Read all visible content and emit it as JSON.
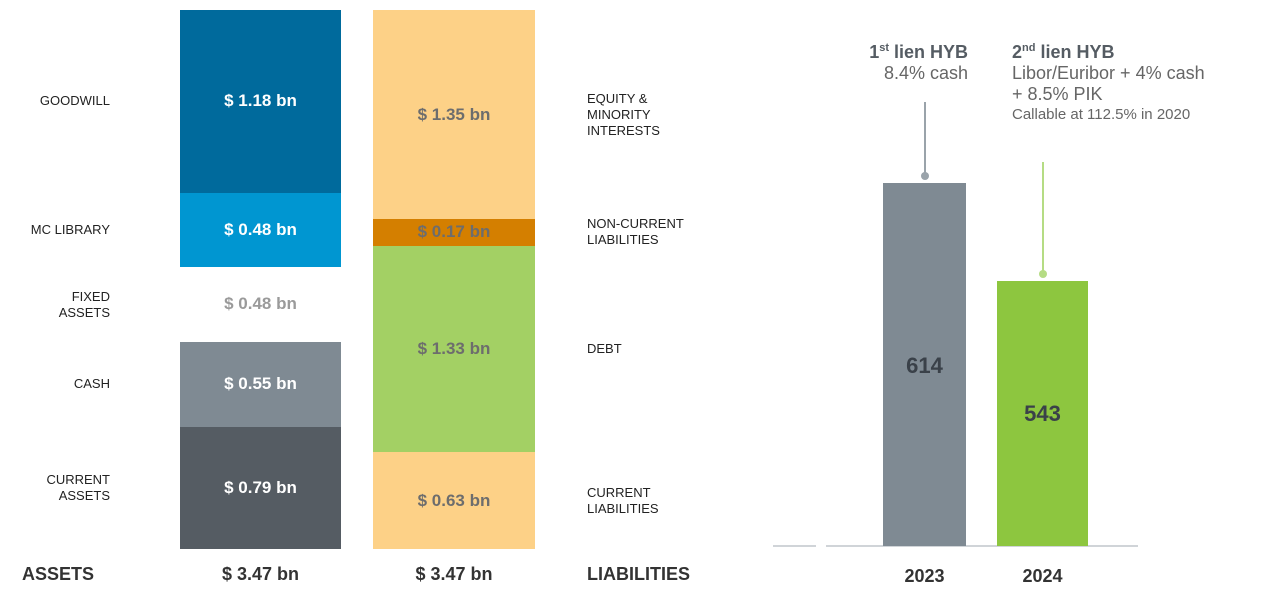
{
  "chart_data": [
    {
      "type": "balance-sheet",
      "columns": [
        {
          "name": "ASSETS",
          "total": 3.47,
          "total_label": "$ 3.47 bn",
          "segments": [
            "GOODWILL",
            "MC LIBRARY",
            "FIXED\nASSETS",
            "CASH",
            "CURRENT\nASSETS"
          ],
          "values": [
            1.18,
            0.48,
            0.48,
            0.55,
            0.79
          ],
          "value_labels": [
            "$ 1.18 bn",
            "$ 0.48 bn",
            "$ 0.48 bn",
            "$ 0.55 bn",
            "$ 0.79 bn"
          ],
          "colors": [
            "#006a9c",
            "#0096d1",
            "#ffffff",
            "#7f8a93",
            "#555c63"
          ],
          "label_colors": [
            "#ffffff",
            "#ffffff",
            "#9a9a9a",
            "#ffffff",
            "#ffffff"
          ]
        },
        {
          "name": "LIABILITIES",
          "total": 3.47,
          "total_label": "$ 3.47 bn",
          "segments": [
            "EQUITY &\nMINORITY\nINTERESTS",
            "NON-CURRENT\nLIABILITIES",
            "DEBT",
            "CURRENT\nLIABILITIES"
          ],
          "values": [
            1.35,
            0.17,
            1.33,
            0.63
          ],
          "value_labels": [
            "$ 1.35 bn",
            "$ 0.17 bn",
            "$ 1.33 bn",
            "$ 0.63 bn"
          ],
          "colors": [
            "#fdd187",
            "#d47f00",
            "#a3d064",
            "#fdd187"
          ],
          "label_colors": [
            "#6d6d6d",
            "#6d6d6d",
            "#6d6d6d",
            "#6d6d6d"
          ]
        }
      ]
    },
    {
      "type": "bar",
      "categories": [
        "2023",
        "2024"
      ],
      "series": [
        {
          "values": [
            614,
            543
          ],
          "colors": [
            "#7f8a93",
            "#8dc63f"
          ],
          "label_colors": [
            "#3a4149",
            "#3a4149"
          ]
        }
      ],
      "ylim": [
        350,
        740
      ],
      "annotations": [
        {
          "title": "1st lien HYB",
          "lines": [
            "8.4% cash"
          ]
        },
        {
          "title": "2nd lien HYB",
          "lines": [
            "Libor/Euribor + 4% cash",
            "+ 8.5% PIK",
            "Callable at 112.5% in 2020"
          ]
        }
      ]
    }
  ]
}
